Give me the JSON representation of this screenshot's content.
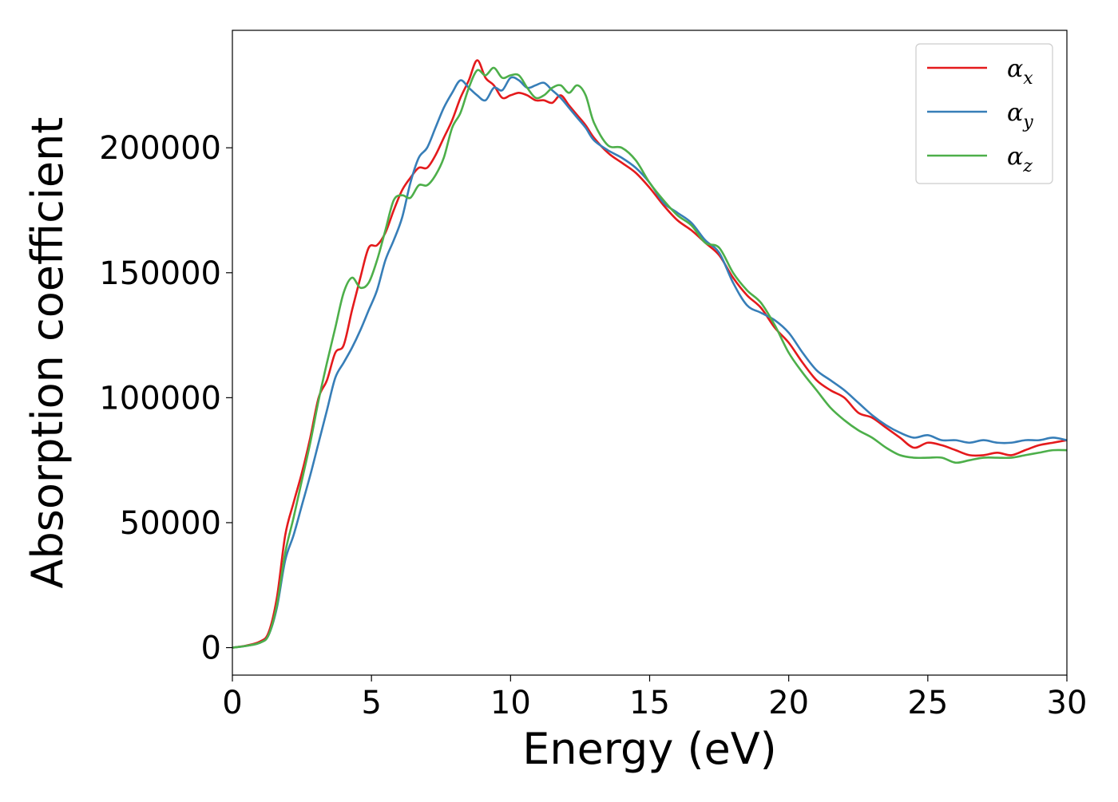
{
  "chart_data": {
    "type": "line",
    "title": "",
    "xlabel": "Energy (eV)",
    "ylabel": "Absorption coefficient",
    "xlim": [
      0,
      30
    ],
    "ylim": [
      -11000,
      247000
    ],
    "xticks": [
      0,
      5,
      10,
      15,
      20,
      25,
      30
    ],
    "yticks": [
      0,
      50000,
      100000,
      150000,
      200000
    ],
    "grid": false,
    "legend_position": "top-right",
    "x": [
      0,
      0.5,
      1,
      1.3,
      1.6,
      1.9,
      2.2,
      2.5,
      2.8,
      3.1,
      3.4,
      3.7,
      4.0,
      4.3,
      4.6,
      4.9,
      5.2,
      5.5,
      5.8,
      6.1,
      6.4,
      6.7,
      7.0,
      7.3,
      7.6,
      7.9,
      8.2,
      8.5,
      8.8,
      9.1,
      9.4,
      9.7,
      10.0,
      10.3,
      10.6,
      10.9,
      11.2,
      11.5,
      11.8,
      12.1,
      12.4,
      12.7,
      13.0,
      13.5,
      14.0,
      14.5,
      15.0,
      15.5,
      16.0,
      16.5,
      17.0,
      17.5,
      18.0,
      18.5,
      19.0,
      19.5,
      20.0,
      20.5,
      21.0,
      21.5,
      22.0,
      22.5,
      23.0,
      23.5,
      24.0,
      24.5,
      25.0,
      25.5,
      26.0,
      26.5,
      27.0,
      27.5,
      28.0,
      28.5,
      29.0,
      29.5,
      30.0
    ],
    "series": [
      {
        "name_base": "α",
        "name_sub": "x",
        "color": "#e41a1c",
        "values": [
          0,
          800,
          2500,
          6000,
          20000,
          45000,
          58000,
          70000,
          84000,
          100000,
          107000,
          118000,
          121000,
          135000,
          148000,
          160000,
          161000,
          166000,
          175000,
          183000,
          188000,
          192000,
          192000,
          197000,
          204000,
          211000,
          220000,
          227000,
          235000,
          228000,
          225000,
          220000,
          221000,
          222000,
          221000,
          219000,
          219000,
          218000,
          221000,
          217000,
          213000,
          209000,
          204000,
          198000,
          194000,
          190000,
          184000,
          177000,
          171000,
          167000,
          162000,
          157000,
          148000,
          141000,
          136000,
          128000,
          122000,
          114000,
          107000,
          103000,
          100000,
          94000,
          92000,
          88000,
          84000,
          80000,
          82000,
          81000,
          79000,
          77000,
          77000,
          78000,
          77000,
          79000,
          81000,
          82000,
          83000
        ]
      },
      {
        "name_base": "α",
        "name_sub": "y",
        "color": "#377eb8",
        "values": [
          0,
          700,
          2000,
          5000,
          16000,
          35000,
          45000,
          57000,
          69000,
          82000,
          95000,
          108000,
          114000,
          120000,
          127000,
          135000,
          143000,
          155000,
          163000,
          172000,
          186000,
          196000,
          200000,
          208000,
          216000,
          222000,
          227000,
          224000,
          221000,
          219000,
          224000,
          223000,
          228000,
          227000,
          224000,
          225000,
          226000,
          223000,
          220000,
          216000,
          212000,
          208000,
          203000,
          199000,
          196000,
          192000,
          186000,
          178000,
          174000,
          170000,
          163000,
          158000,
          146000,
          137000,
          134000,
          131000,
          126000,
          118000,
          111000,
          107000,
          103000,
          98000,
          93000,
          89000,
          86000,
          84000,
          85000,
          83000,
          83000,
          82000,
          83000,
          82000,
          82000,
          83000,
          83000,
          84000,
          83000
        ]
      },
      {
        "name_base": "α",
        "name_sub": "z",
        "color": "#4daf4a",
        "values": [
          0,
          700,
          2000,
          5000,
          17000,
          38000,
          52000,
          67000,
          82000,
          99000,
          114000,
          128000,
          142000,
          148000,
          144000,
          146000,
          155000,
          167000,
          179000,
          181000,
          180000,
          185000,
          185000,
          189000,
          196000,
          208000,
          214000,
          224000,
          231000,
          229000,
          232000,
          228000,
          229000,
          229000,
          224000,
          220000,
          221000,
          224000,
          225000,
          222000,
          225000,
          221000,
          210000,
          201000,
          200000,
          195000,
          186000,
          179000,
          173000,
          169000,
          162000,
          160000,
          150000,
          143000,
          138000,
          129000,
          118000,
          110000,
          103000,
          96000,
          91000,
          87000,
          84000,
          80000,
          77000,
          76000,
          76000,
          76000,
          74000,
          75000,
          76000,
          76000,
          76000,
          77000,
          78000,
          79000,
          79000
        ]
      }
    ]
  }
}
